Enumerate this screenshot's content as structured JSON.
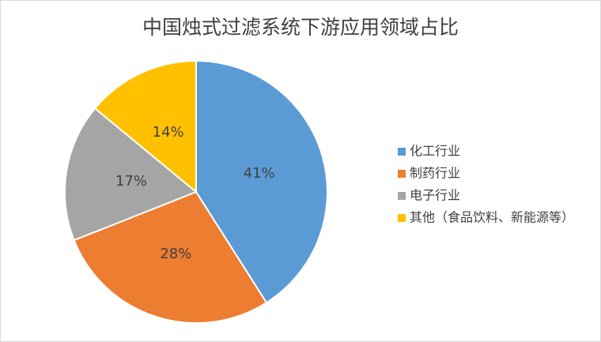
{
  "chart_data": {
    "type": "pie",
    "title": "中国烛式过滤系统下游应用领域占比",
    "categories": [
      "化工行业",
      "制药行业",
      "电子行业",
      "其他（食品饮料、新能源等）"
    ],
    "values": [
      41,
      28,
      17,
      14
    ],
    "value_labels": [
      "41%",
      "28%",
      "17%",
      "14%"
    ],
    "colors": [
      "#5b9bd5",
      "#ed7d31",
      "#a5a5a5",
      "#ffc000"
    ],
    "legend": "right"
  }
}
